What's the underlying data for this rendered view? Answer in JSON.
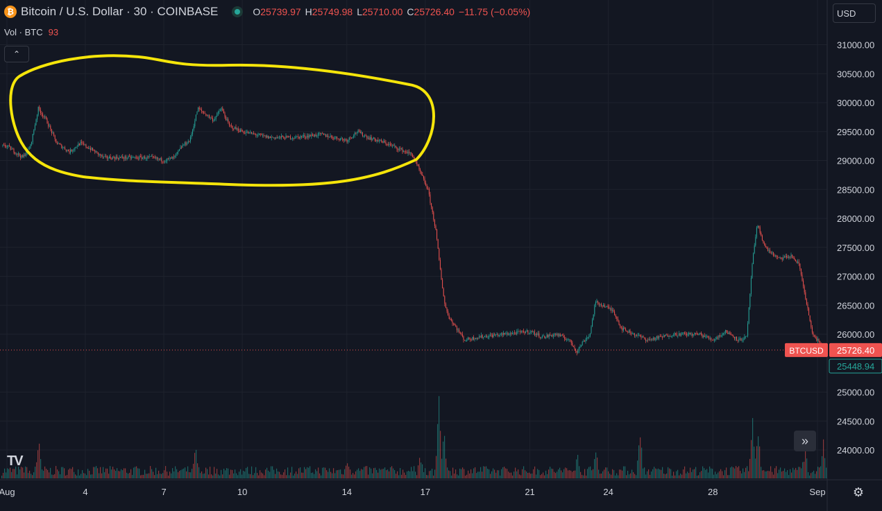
{
  "header": {
    "symbol_icon": "bitcoin-icon",
    "title": "Bitcoin / U.S. Dollar · 30 · COINBASE",
    "ohlc": [
      {
        "key": "O",
        "value": "25739.97"
      },
      {
        "key": "H",
        "value": "25749.98"
      },
      {
        "key": "L",
        "value": "25710.00"
      },
      {
        "key": "C",
        "value": "25726.40"
      }
    ],
    "change": "−11.75 (−0.05%)"
  },
  "volume_legend": {
    "label": "Vol · BTC",
    "value": "93"
  },
  "currency": "USD",
  "colors": {
    "up": "#26a69a",
    "down": "#ef5350",
    "annotation": "#f5e50a",
    "background": "#131722"
  },
  "icons": {
    "collapse": "chevron-up-icon",
    "scroll": "double-chevron-right-icon",
    "settings": "settings-icon",
    "logo": "tradingview-logo-icon"
  },
  "chart_data": {
    "type": "candlestick",
    "y_axis": {
      "ticks": [
        31000,
        30500,
        30000,
        29500,
        29000,
        28500,
        28000,
        27500,
        27000,
        26500,
        26000,
        25000,
        24500,
        24000
      ],
      "tick_labels": [
        "31000.00",
        "30500.00",
        "30000.00",
        "29500.00",
        "29000.00",
        "28500.00",
        "28000.00",
        "27500.00",
        "27000.00",
        "26500.00",
        "26000.00",
        "25000.00",
        "24500.00",
        "24000.00"
      ],
      "range": [
        23500,
        31400
      ]
    },
    "x_axis": {
      "labels": [
        {
          "label": "Aug",
          "day": 1
        },
        {
          "label": "4",
          "day": 4
        },
        {
          "label": "7",
          "day": 7
        },
        {
          "label": "10",
          "day": 10
        },
        {
          "label": "14",
          "day": 14
        },
        {
          "label": "17",
          "day": 17
        },
        {
          "label": "21",
          "day": 21
        },
        {
          "label": "24",
          "day": 24
        },
        {
          "label": "28",
          "day": 28
        },
        {
          "label": "Sep",
          "day": 32
        }
      ],
      "range": [
        1,
        32.2
      ]
    },
    "price_path": [
      [
        1.0,
        29250
      ],
      [
        1.3,
        29150
      ],
      [
        1.6,
        29050
      ],
      [
        1.9,
        29250
      ],
      [
        2.2,
        29900
      ],
      [
        2.5,
        29700
      ],
      [
        2.9,
        29300
      ],
      [
        3.4,
        29150
      ],
      [
        3.8,
        29300
      ],
      [
        4.2,
        29200
      ],
      [
        4.7,
        29050
      ],
      [
        5.3,
        29050
      ],
      [
        5.9,
        29050
      ],
      [
        6.5,
        29050
      ],
      [
        7.0,
        29000
      ],
      [
        7.4,
        29050
      ],
      [
        7.7,
        29250
      ],
      [
        8.0,
        29350
      ],
      [
        8.3,
        29900
      ],
      [
        8.6,
        29800
      ],
      [
        8.9,
        29700
      ],
      [
        9.2,
        29900
      ],
      [
        9.5,
        29600
      ],
      [
        10.0,
        29500
      ],
      [
        11.0,
        29400
      ],
      [
        12.0,
        29400
      ],
      [
        13.0,
        29450
      ],
      [
        13.5,
        29400
      ],
      [
        14.0,
        29350
      ],
      [
        14.4,
        29500
      ],
      [
        14.8,
        29400
      ],
      [
        15.5,
        29300
      ],
      [
        16.0,
        29200
      ],
      [
        16.5,
        29100
      ],
      [
        16.8,
        28800
      ],
      [
        17.1,
        28500
      ],
      [
        17.4,
        27800
      ],
      [
        17.6,
        27000
      ],
      [
        17.75,
        26500
      ],
      [
        17.9,
        26300
      ],
      [
        18.2,
        26100
      ],
      [
        18.5,
        25900
      ],
      [
        19.0,
        25950
      ],
      [
        20.0,
        26000
      ],
      [
        21.0,
        26050
      ],
      [
        21.5,
        25950
      ],
      [
        22.0,
        26000
      ],
      [
        22.5,
        25900
      ],
      [
        22.8,
        25700
      ],
      [
        23.0,
        25850
      ],
      [
        23.3,
        26000
      ],
      [
        23.5,
        26550
      ],
      [
        23.8,
        26500
      ],
      [
        24.2,
        26400
      ],
      [
        24.5,
        26100
      ],
      [
        25.0,
        26000
      ],
      [
        25.5,
        25900
      ],
      [
        26.0,
        25950
      ],
      [
        26.5,
        26000
      ],
      [
        27.0,
        26000
      ],
      [
        27.5,
        26000
      ],
      [
        28.0,
        25900
      ],
      [
        28.5,
        26050
      ],
      [
        29.0,
        25900
      ],
      [
        29.3,
        25950
      ],
      [
        29.5,
        27200
      ],
      [
        29.7,
        27900
      ],
      [
        30.0,
        27500
      ],
      [
        30.5,
        27300
      ],
      [
        31.0,
        27350
      ],
      [
        31.3,
        27200
      ],
      [
        31.6,
        26500
      ],
      [
        31.8,
        26000
      ],
      [
        32.0,
        25900
      ],
      [
        32.2,
        25726
      ]
    ],
    "volume_spikes": [
      [
        1.6,
        0.12
      ],
      [
        2.2,
        0.55
      ],
      [
        8.2,
        0.4
      ],
      [
        14.0,
        0.3
      ],
      [
        16.8,
        0.35
      ],
      [
        17.5,
        1.0
      ],
      [
        17.7,
        0.7
      ],
      [
        22.8,
        0.35
      ],
      [
        23.5,
        0.4
      ],
      [
        25.2,
        0.65
      ],
      [
        29.5,
        0.9
      ],
      [
        29.7,
        0.7
      ],
      [
        31.5,
        0.45
      ],
      [
        32.2,
        0.55
      ]
    ],
    "price_labels": [
      {
        "name": "BTCUSD",
        "value": "25726.40",
        "price": 25726.4
      },
      {
        "name": "",
        "value": "25448.94",
        "price": 25448.94
      }
    ]
  }
}
